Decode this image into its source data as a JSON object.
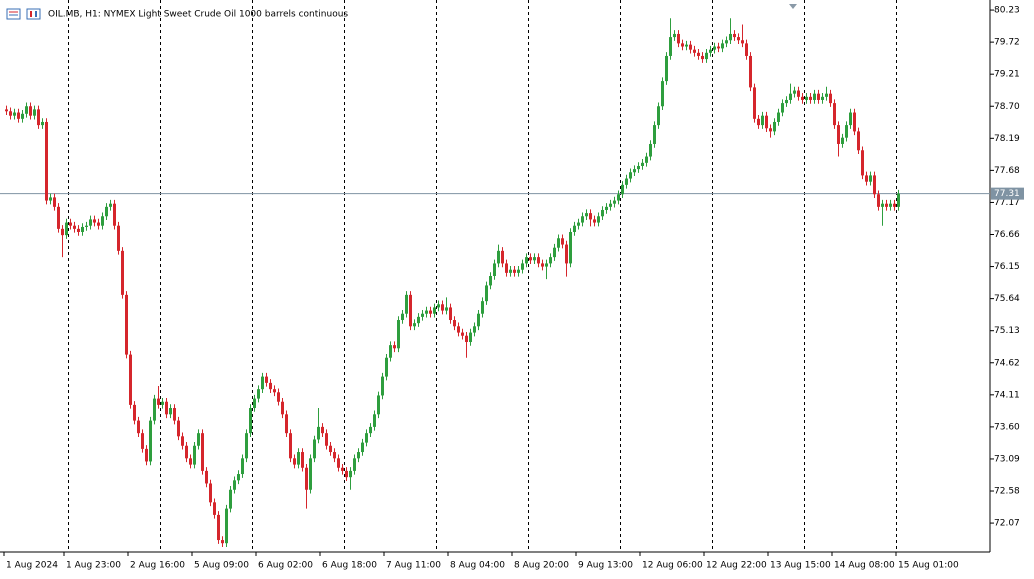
{
  "chart_data": {
    "type": "candlestick",
    "title": "OIL.MB, H1:  NYMEX Light Sweet Crude Oil 1000 barrels continuous",
    "colors": {
      "up": "#2e9e3e",
      "down": "#d5262c"
    },
    "ylim": [
      71.61,
      80.39
    ],
    "yticks": [
      80.23,
      79.72,
      79.21,
      {
        "value": 78.7,
        "label": "78.70"
      },
      78.19,
      77.68,
      77.17,
      76.66,
      76.15,
      75.64,
      75.13,
      74.62,
      74.11,
      {
        "value": 73.6,
        "label": "73.60"
      },
      73.09,
      72.58,
      72.07
    ],
    "xlim": [
      -1.5,
      246
    ],
    "xticks": [
      {
        "value": 0,
        "label": "1 Aug 2024"
      },
      {
        "value": 15,
        "label": "1 Aug 23:00"
      },
      {
        "value": 31,
        "label": "2 Aug 16:00"
      },
      {
        "value": 47,
        "label": "5 Aug 09:00"
      },
      {
        "value": 63,
        "label": "6 Aug 02:00"
      },
      {
        "value": 79,
        "label": "6 Aug 18:00"
      },
      {
        "value": 95,
        "label": "7 Aug 11:00"
      },
      {
        "value": 111,
        "label": "8 Aug 04:00"
      },
      {
        "value": 127,
        "label": "8 Aug 20:00"
      },
      {
        "value": 143,
        "label": "9 Aug 13:00"
      },
      {
        "value": 159,
        "label": "12 Aug 06:00"
      },
      {
        "value": 175,
        "label": "12 Aug 22:00"
      },
      {
        "value": 191,
        "label": "13 Aug 15:00"
      },
      {
        "value": 207,
        "label": "14 Aug 08:00"
      },
      {
        "value": 223,
        "label": "15 Aug 01:00"
      }
    ],
    "xgrid": [
      16,
      39,
      62,
      85,
      108,
      131,
      154,
      177,
      200,
      223
    ],
    "last_price": 77.31,
    "ohlc": [
      [
        78.65,
        78.71,
        78.56,
        78.62
      ],
      [
        78.62,
        78.68,
        78.49,
        78.55
      ],
      [
        78.55,
        78.66,
        78.49,
        78.6
      ],
      [
        78.6,
        78.66,
        78.44,
        78.5
      ],
      [
        78.5,
        78.64,
        78.44,
        78.58
      ],
      [
        78.58,
        78.76,
        78.52,
        78.7
      ],
      [
        78.7,
        78.76,
        78.49,
        78.55
      ],
      [
        78.55,
        78.71,
        78.49,
        78.65
      ],
      [
        78.65,
        78.71,
        78.34,
        78.4
      ],
      [
        78.4,
        78.51,
        78.34,
        78.45
      ],
      [
        78.45,
        78.51,
        77.14,
        77.2
      ],
      [
        77.2,
        77.31,
        77.14,
        77.25
      ],
      [
        77.25,
        77.31,
        77.04,
        77.1
      ],
      [
        77.1,
        77.16,
        76.69,
        76.75
      ],
      [
        76.75,
        76.81,
        76.3,
        76.65
      ],
      [
        76.65,
        76.91,
        76.59,
        76.85
      ],
      [
        76.85,
        76.91,
        76.74,
        76.8
      ],
      [
        76.8,
        76.86,
        76.69,
        76.75
      ],
      [
        76.75,
        76.81,
        76.64,
        76.7
      ],
      [
        76.7,
        76.84,
        76.64,
        76.78
      ],
      [
        76.78,
        76.86,
        76.72,
        76.8
      ],
      [
        76.8,
        76.96,
        76.74,
        76.9
      ],
      [
        76.9,
        76.96,
        76.79,
        76.85
      ],
      [
        76.85,
        76.91,
        76.74,
        76.8
      ],
      [
        76.8,
        77.01,
        76.74,
        76.95
      ],
      [
        76.95,
        77.16,
        76.89,
        77.1
      ],
      [
        77.1,
        77.21,
        77.04,
        77.15
      ],
      [
        77.15,
        77.21,
        76.74,
        76.8
      ],
      [
        76.8,
        76.86,
        76.34,
        76.4
      ],
      [
        76.4,
        76.46,
        75.64,
        75.7
      ],
      [
        75.7,
        75.76,
        74.69,
        74.75
      ],
      [
        74.75,
        74.81,
        73.89,
        73.95
      ],
      [
        73.95,
        74.01,
        73.64,
        73.7
      ],
      [
        73.7,
        73.76,
        73.44,
        73.5
      ],
      [
        73.5,
        73.56,
        73.19,
        73.25
      ],
      [
        73.25,
        73.31,
        72.99,
        73.05
      ],
      [
        73.05,
        73.76,
        72.99,
        73.7
      ],
      [
        73.7,
        74.11,
        73.64,
        74.05
      ],
      [
        74.05,
        74.25,
        73.89,
        73.95
      ],
      [
        73.95,
        74.06,
        73.89,
        74.0
      ],
      [
        74.0,
        74.06,
        73.74,
        73.8
      ],
      [
        73.8,
        73.96,
        73.74,
        73.9
      ],
      [
        73.9,
        73.96,
        73.64,
        73.7
      ],
      [
        73.7,
        73.76,
        73.39,
        73.45
      ],
      [
        73.45,
        73.51,
        73.24,
        73.3
      ],
      [
        73.3,
        73.36,
        73.04,
        73.1
      ],
      [
        73.1,
        73.16,
        72.94,
        73.0
      ],
      [
        73.0,
        73.36,
        72.94,
        73.3
      ],
      [
        73.3,
        73.56,
        73.24,
        73.5
      ],
      [
        73.5,
        73.56,
        72.84,
        72.9
      ],
      [
        72.9,
        72.96,
        72.64,
        72.7
      ],
      [
        72.7,
        72.76,
        72.34,
        72.4
      ],
      [
        72.4,
        72.46,
        72.14,
        72.2
      ],
      [
        72.2,
        72.26,
        71.74,
        71.8
      ],
      [
        71.8,
        71.86,
        71.69,
        71.75
      ],
      [
        71.75,
        72.36,
        71.69,
        72.3
      ],
      [
        72.3,
        72.66,
        72.24,
        72.6
      ],
      [
        72.6,
        72.81,
        72.54,
        72.75
      ],
      [
        72.75,
        72.91,
        72.69,
        72.85
      ],
      [
        72.85,
        73.16,
        72.79,
        73.1
      ],
      [
        73.1,
        73.56,
        73.04,
        73.5
      ],
      [
        73.5,
        73.96,
        73.44,
        73.9
      ],
      [
        73.9,
        74.11,
        73.84,
        74.05
      ],
      [
        74.05,
        74.26,
        73.99,
        74.2
      ],
      [
        74.2,
        74.46,
        74.14,
        74.4
      ],
      [
        74.4,
        74.46,
        74.24,
        74.3
      ],
      [
        74.3,
        74.36,
        74.14,
        74.2
      ],
      [
        74.2,
        74.26,
        74.09,
        74.15
      ],
      [
        74.15,
        74.21,
        73.94,
        74.0
      ],
      [
        74.0,
        74.06,
        73.74,
        73.8
      ],
      [
        73.8,
        73.86,
        73.44,
        73.5
      ],
      [
        73.5,
        73.56,
        73.04,
        73.1
      ],
      [
        73.1,
        73.16,
        72.94,
        73.0
      ],
      [
        73.0,
        73.26,
        72.94,
        73.2
      ],
      [
        73.2,
        73.26,
        72.89,
        72.95
      ],
      [
        72.95,
        73.01,
        72.3,
        72.6
      ],
      [
        72.6,
        73.16,
        72.54,
        73.1
      ],
      [
        73.1,
        73.46,
        73.04,
        73.4
      ],
      [
        73.4,
        73.9,
        73.34,
        73.6
      ],
      [
        73.6,
        73.66,
        73.44,
        73.5
      ],
      [
        73.5,
        73.56,
        73.24,
        73.3
      ],
      [
        73.3,
        73.36,
        73.14,
        73.2
      ],
      [
        73.2,
        73.26,
        73.04,
        73.1
      ],
      [
        73.1,
        73.16,
        72.89,
        72.95
      ],
      [
        72.95,
        73.01,
        72.84,
        72.9
      ],
      [
        72.9,
        72.96,
        72.74,
        72.8
      ],
      [
        72.8,
        72.96,
        72.6,
        72.9
      ],
      [
        72.9,
        73.16,
        72.84,
        73.1
      ],
      [
        73.1,
        73.26,
        73.04,
        73.2
      ],
      [
        73.2,
        73.41,
        73.14,
        73.35
      ],
      [
        73.35,
        73.56,
        73.29,
        73.5
      ],
      [
        73.5,
        73.66,
        73.44,
        73.6
      ],
      [
        73.6,
        73.86,
        73.54,
        73.8
      ],
      [
        73.8,
        74.16,
        73.74,
        74.1
      ],
      [
        74.1,
        74.46,
        74.04,
        74.4
      ],
      [
        74.4,
        74.76,
        74.34,
        74.7
      ],
      [
        74.7,
        74.96,
        74.64,
        74.9
      ],
      [
        74.9,
        74.96,
        74.79,
        74.85
      ],
      [
        74.85,
        75.36,
        74.79,
        75.3
      ],
      [
        75.3,
        75.46,
        75.24,
        75.4
      ],
      [
        75.4,
        75.76,
        75.34,
        75.7
      ],
      [
        75.7,
        75.76,
        75.14,
        75.2
      ],
      [
        75.2,
        75.31,
        75.14,
        75.25
      ],
      [
        75.25,
        75.41,
        75.19,
        75.35
      ],
      [
        75.35,
        75.46,
        75.29,
        75.4
      ],
      [
        75.4,
        75.51,
        75.34,
        75.45
      ],
      [
        75.45,
        75.51,
        75.34,
        75.4
      ],
      [
        75.4,
        75.56,
        75.34,
        75.5
      ],
      [
        75.5,
        75.61,
        75.44,
        75.55
      ],
      [
        75.55,
        75.61,
        75.39,
        75.45
      ],
      [
        75.45,
        75.66,
        75.39,
        75.5
      ],
      [
        75.5,
        75.56,
        75.24,
        75.3
      ],
      [
        75.3,
        75.36,
        75.14,
        75.2
      ],
      [
        75.2,
        75.26,
        75.04,
        75.1
      ],
      [
        75.1,
        75.16,
        74.99,
        75.05
      ],
      [
        75.05,
        75.11,
        74.7,
        74.95
      ],
      [
        74.95,
        75.16,
        74.89,
        75.1
      ],
      [
        75.1,
        75.26,
        75.04,
        75.2
      ],
      [
        75.2,
        75.46,
        75.14,
        75.4
      ],
      [
        75.4,
        75.66,
        75.34,
        75.6
      ],
      [
        75.6,
        75.91,
        75.54,
        75.85
      ],
      [
        75.85,
        76.06,
        75.79,
        76.0
      ],
      [
        76.0,
        76.26,
        75.94,
        76.2
      ],
      [
        76.2,
        76.5,
        76.14,
        76.4
      ],
      [
        76.4,
        76.46,
        76.14,
        76.2
      ],
      [
        76.2,
        76.26,
        75.99,
        76.05
      ],
      [
        76.05,
        76.16,
        75.99,
        76.1
      ],
      [
        76.1,
        76.16,
        75.99,
        76.05
      ],
      [
        76.05,
        76.16,
        75.99,
        76.1
      ],
      [
        76.1,
        76.26,
        76.04,
        76.2
      ],
      [
        76.2,
        76.36,
        76.14,
        76.3
      ],
      [
        76.3,
        76.36,
        76.19,
        76.25
      ],
      [
        76.25,
        76.36,
        76.19,
        76.3
      ],
      [
        76.3,
        76.36,
        76.14,
        76.2
      ],
      [
        76.2,
        76.26,
        76.09,
        76.15
      ],
      [
        76.15,
        76.26,
        75.95,
        76.2
      ],
      [
        76.2,
        76.36,
        76.14,
        76.3
      ],
      [
        76.3,
        76.51,
        76.24,
        76.45
      ],
      [
        76.45,
        76.66,
        76.39,
        76.6
      ],
      [
        76.6,
        76.66,
        76.44,
        76.5
      ],
      [
        76.5,
        76.56,
        75.99,
        76.2
      ],
      [
        76.2,
        76.76,
        76.14,
        76.7
      ],
      [
        76.7,
        76.86,
        76.64,
        76.8
      ],
      [
        76.8,
        76.91,
        76.74,
        76.85
      ],
      [
        76.85,
        77.01,
        76.79,
        76.95
      ],
      [
        76.95,
        77.06,
        76.89,
        77.0
      ],
      [
        77.0,
        77.06,
        76.79,
        76.9
      ],
      [
        76.9,
        76.96,
        76.79,
        76.85
      ],
      [
        76.85,
        77.01,
        76.79,
        76.95
      ],
      [
        76.95,
        77.11,
        76.89,
        77.05
      ],
      [
        77.05,
        77.16,
        76.99,
        77.1
      ],
      [
        77.1,
        77.21,
        77.04,
        77.15
      ],
      [
        77.15,
        77.26,
        77.09,
        77.2
      ],
      [
        77.2,
        77.36,
        77.14,
        77.3
      ],
      [
        77.3,
        77.51,
        77.24,
        77.45
      ],
      [
        77.45,
        77.61,
        77.39,
        77.55
      ],
      [
        77.55,
        77.71,
        77.49,
        77.65
      ],
      [
        77.65,
        77.76,
        77.59,
        77.7
      ],
      [
        77.7,
        77.81,
        77.64,
        77.75
      ],
      [
        77.75,
        77.86,
        77.69,
        77.8
      ],
      [
        77.8,
        77.96,
        77.74,
        77.9
      ],
      [
        77.9,
        78.16,
        77.84,
        78.1
      ],
      [
        78.1,
        78.46,
        78.04,
        78.4
      ],
      [
        78.4,
        78.76,
        78.34,
        78.7
      ],
      [
        78.7,
        79.16,
        78.64,
        79.1
      ],
      [
        79.1,
        79.56,
        79.04,
        79.5
      ],
      [
        79.5,
        80.1,
        79.44,
        79.8
      ],
      [
        79.8,
        79.91,
        79.74,
        79.85
      ],
      [
        79.85,
        79.91,
        79.64,
        79.7
      ],
      [
        79.7,
        79.76,
        79.59,
        79.65
      ],
      [
        79.65,
        79.74,
        79.59,
        79.68
      ],
      [
        79.68,
        79.74,
        79.54,
        79.6
      ],
      [
        79.6,
        79.66,
        79.49,
        79.55
      ],
      [
        79.55,
        79.61,
        79.44,
        79.5
      ],
      [
        79.5,
        79.56,
        79.39,
        79.45
      ],
      [
        79.45,
        79.61,
        79.39,
        79.55
      ],
      [
        79.55,
        79.66,
        79.49,
        79.6
      ],
      [
        79.6,
        79.71,
        79.54,
        79.65
      ],
      [
        79.65,
        79.71,
        79.56,
        79.62
      ],
      [
        79.62,
        79.76,
        79.56,
        79.7
      ],
      [
        79.7,
        79.81,
        79.64,
        79.75
      ],
      [
        79.75,
        80.1,
        79.69,
        79.85
      ],
      [
        79.85,
        79.91,
        79.74,
        79.8
      ],
      [
        79.8,
        79.86,
        79.69,
        79.75
      ],
      [
        79.75,
        80.0,
        79.64,
        79.7
      ],
      [
        79.7,
        79.76,
        79.44,
        79.5
      ],
      [
        79.5,
        79.56,
        78.94,
        79.0
      ],
      [
        79.0,
        79.06,
        78.44,
        78.5
      ],
      [
        78.5,
        78.56,
        78.34,
        78.4
      ],
      [
        78.4,
        78.61,
        78.34,
        78.55
      ],
      [
        78.55,
        78.61,
        78.29,
        78.35
      ],
      [
        78.35,
        78.41,
        78.2,
        78.3
      ],
      [
        78.3,
        78.51,
        78.24,
        78.45
      ],
      [
        78.45,
        78.66,
        78.39,
        78.6
      ],
      [
        78.6,
        78.81,
        78.54,
        78.75
      ],
      [
        78.75,
        78.86,
        78.69,
        78.8
      ],
      [
        78.8,
        79.06,
        78.74,
        78.9
      ],
      [
        78.9,
        79.01,
        78.84,
        78.95
      ],
      [
        78.95,
        79.01,
        78.79,
        78.85
      ],
      [
        78.85,
        78.91,
        78.74,
        78.8
      ],
      [
        78.8,
        78.91,
        78.74,
        78.85
      ],
      [
        78.85,
        78.91,
        78.74,
        78.8
      ],
      [
        78.8,
        78.96,
        78.74,
        78.9
      ],
      [
        78.9,
        78.96,
        78.74,
        78.8
      ],
      [
        78.8,
        78.91,
        78.74,
        78.85
      ],
      [
        78.85,
        79.01,
        78.79,
        78.9
      ],
      [
        78.9,
        78.96,
        78.69,
        78.75
      ],
      [
        78.75,
        78.81,
        78.34,
        78.4
      ],
      [
        78.4,
        78.46,
        77.9,
        78.1
      ],
      [
        78.1,
        78.26,
        78.04,
        78.2
      ],
      [
        78.2,
        78.46,
        78.14,
        78.4
      ],
      [
        78.4,
        78.66,
        78.34,
        78.6
      ],
      [
        78.6,
        78.66,
        78.24,
        78.3
      ],
      [
        78.3,
        78.36,
        77.94,
        78.0
      ],
      [
        78.0,
        78.06,
        77.54,
        77.6
      ],
      [
        77.6,
        77.66,
        77.44,
        77.5
      ],
      [
        77.5,
        77.66,
        77.44,
        77.6
      ],
      [
        77.6,
        77.66,
        77.24,
        77.3
      ],
      [
        77.3,
        77.36,
        77.04,
        77.1
      ],
      [
        77.1,
        77.21,
        76.8,
        77.15
      ],
      [
        77.15,
        77.21,
        77.04,
        77.1
      ],
      [
        77.1,
        77.21,
        77.04,
        77.15
      ],
      [
        77.15,
        77.21,
        77.04,
        77.1
      ],
      [
        77.1,
        77.37,
        77.04,
        77.31
      ]
    ]
  }
}
